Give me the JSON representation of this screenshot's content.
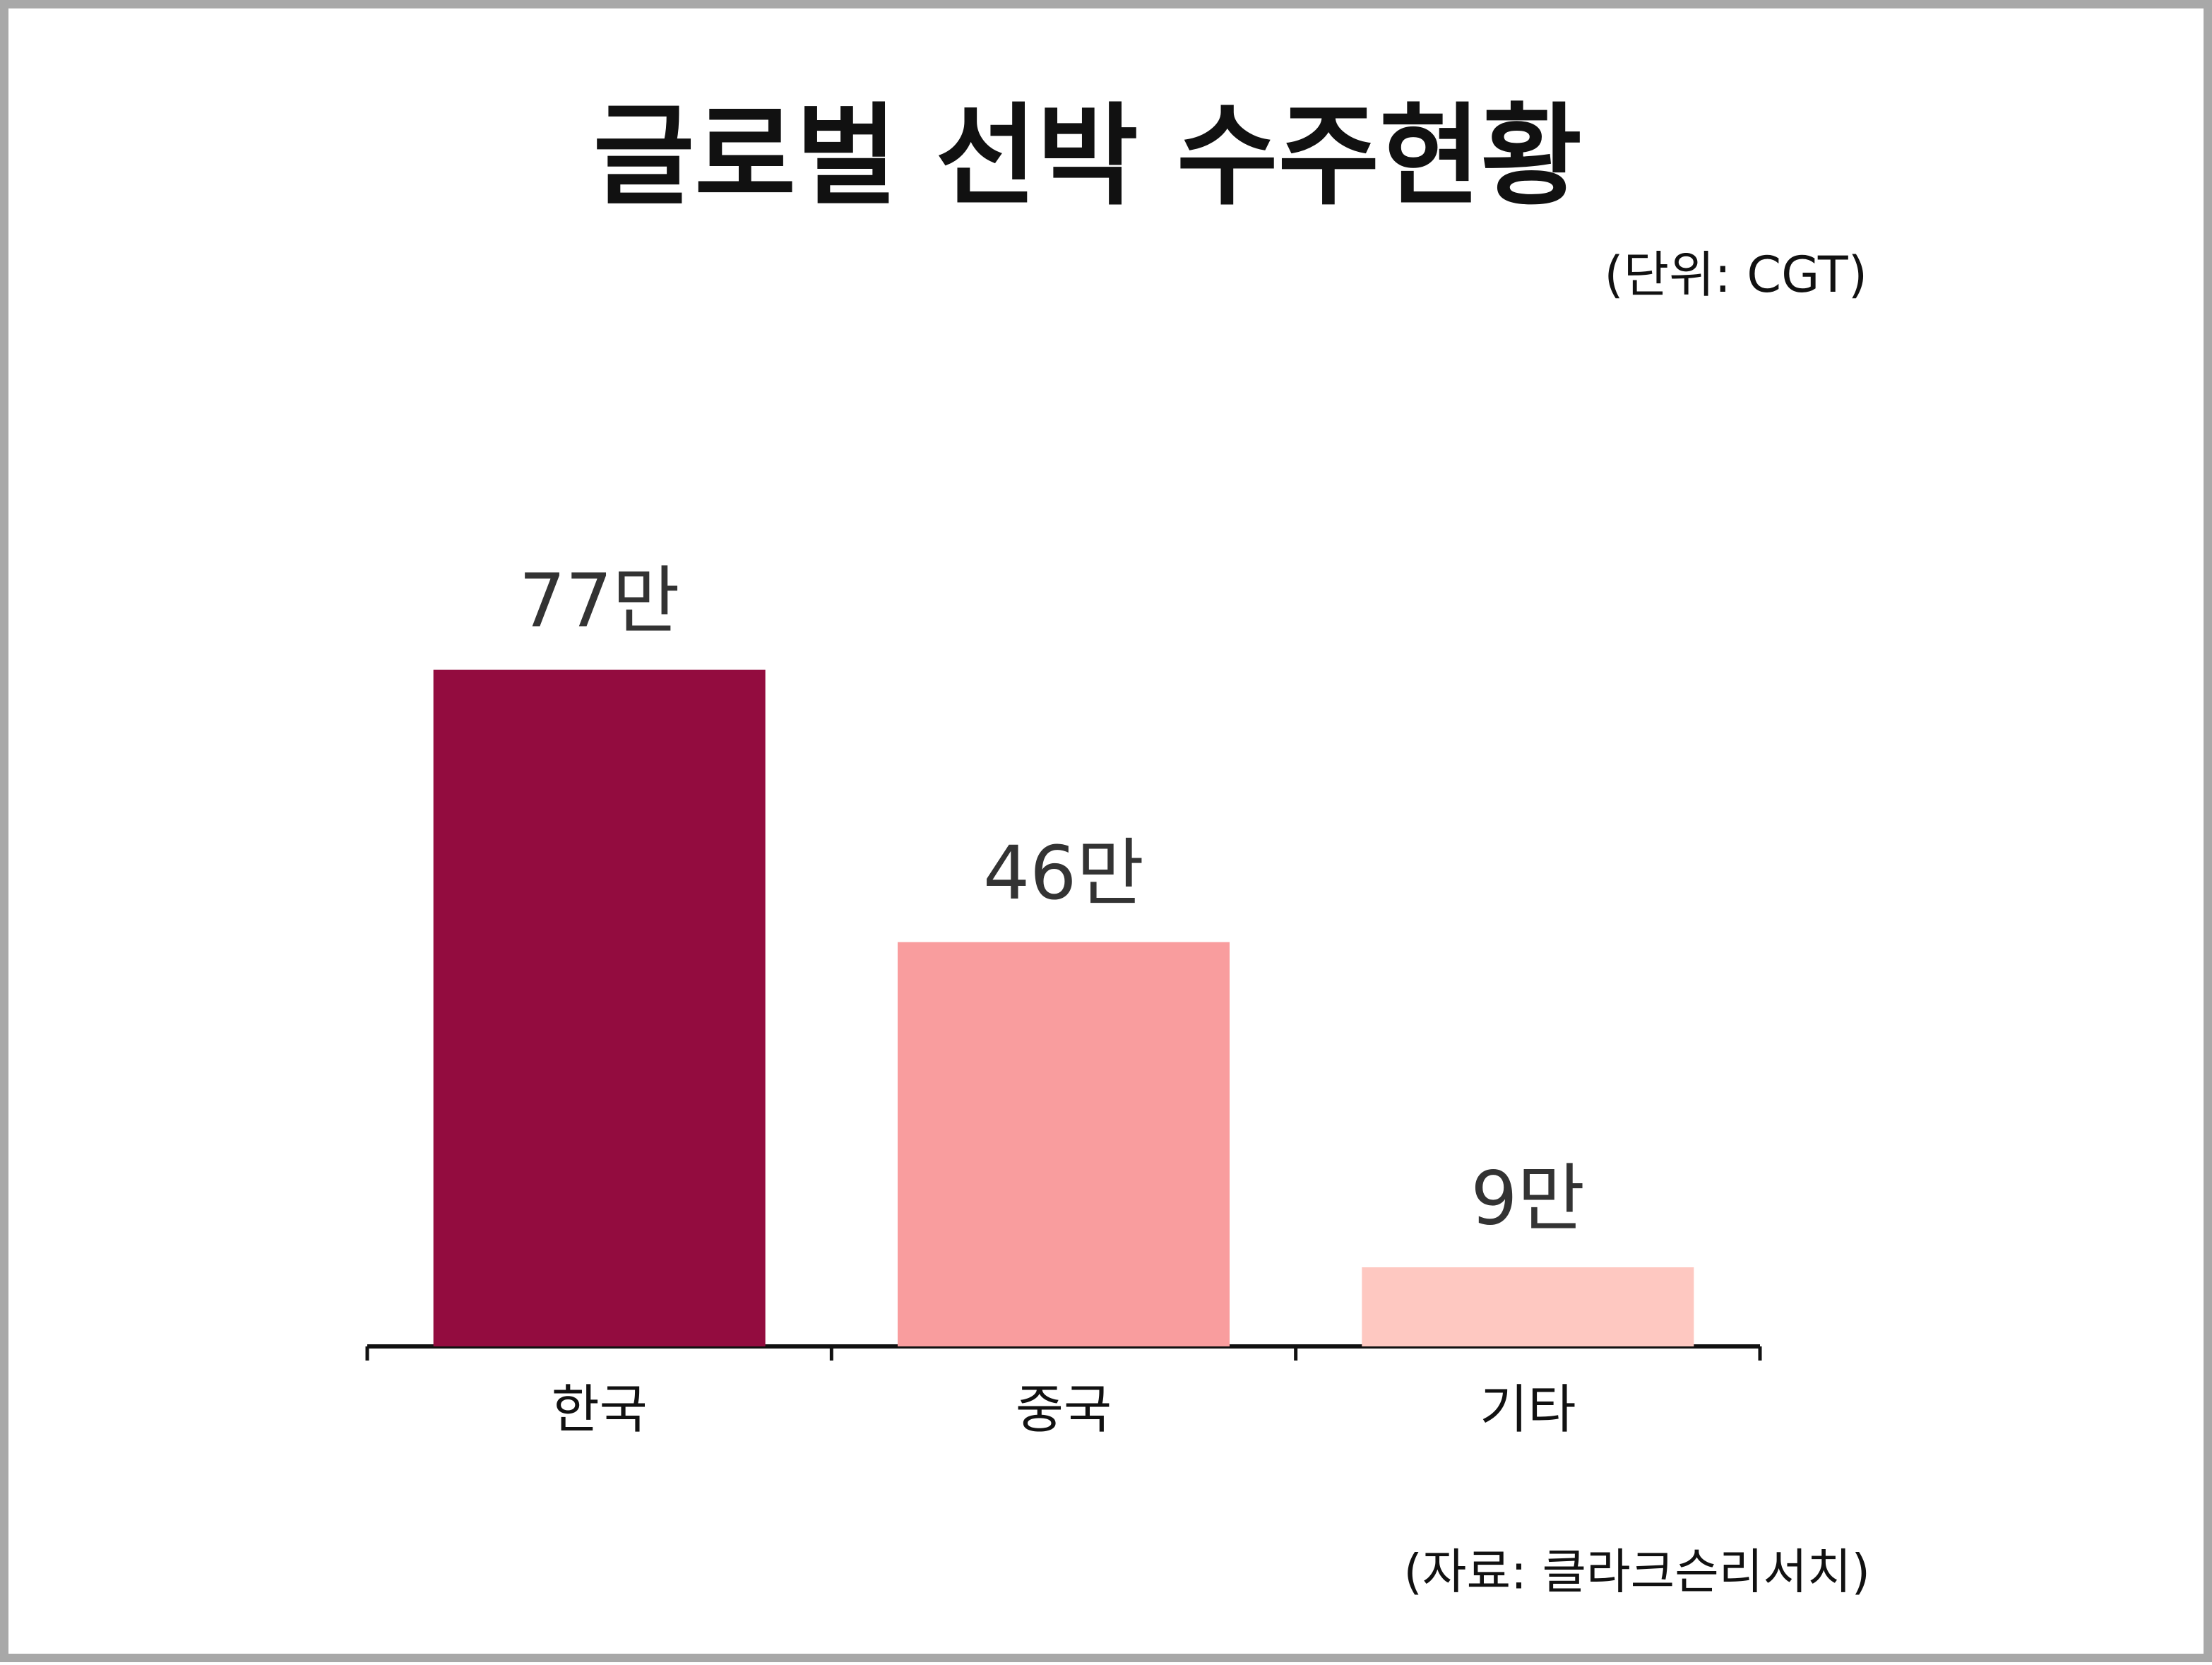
{
  "chart_data": {
    "type": "bar",
    "title": "글로벌 선박 수주현황",
    "subtitle": "(단위: CGT)",
    "source": "(자료: 클라크슨리서치)",
    "categories": [
      "한국",
      "중국",
      "기타"
    ],
    "values": [
      77,
      46,
      9
    ],
    "value_labels": [
      "77만",
      "46만",
      "9만"
    ],
    "colors": [
      "#930c3f",
      "#f99d9e",
      "#fec8c1"
    ]
  }
}
